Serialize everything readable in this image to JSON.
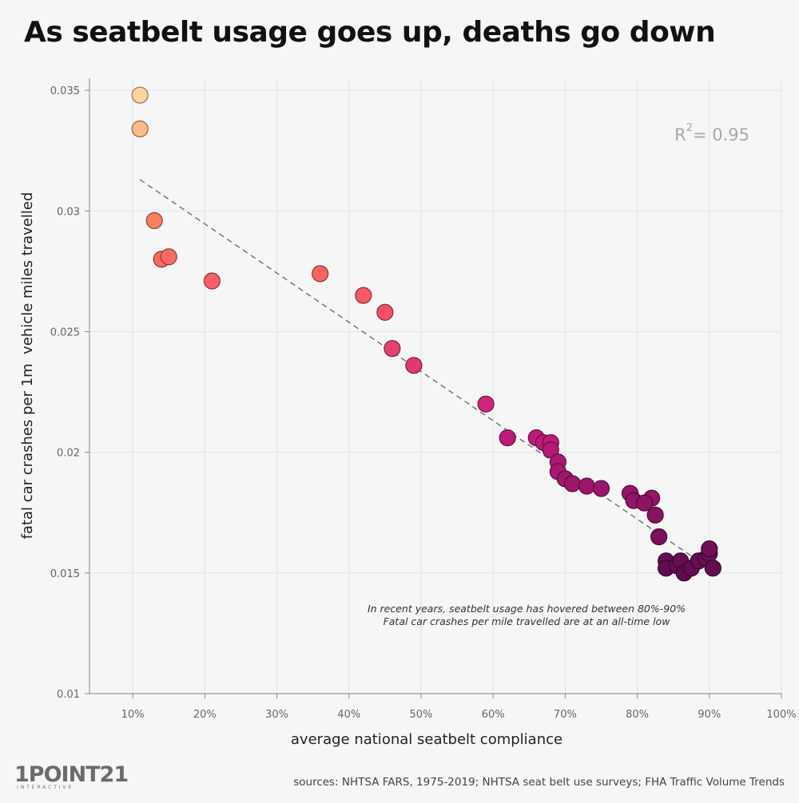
{
  "chart_data": {
    "type": "scatter",
    "title": "As seatbelt usage goes up, deaths go down",
    "xlabel": "average national seatbelt compliance",
    "ylabel": "fatal car crashes per 1m  vehicle miles travelled",
    "xlim": [
      4,
      100
    ],
    "ylim": [
      0.01,
      0.0355
    ],
    "x_ticks": [
      10,
      20,
      30,
      40,
      50,
      60,
      70,
      80,
      90,
      100
    ],
    "x_tick_labels": [
      "10%",
      "20%",
      "30%",
      "40%",
      "50%",
      "60%",
      "70%",
      "80%",
      "90%",
      "100%"
    ],
    "y_ticks": [
      0.01,
      0.015,
      0.02,
      0.025,
      0.03,
      0.035
    ],
    "y_tick_labels": [
      "0.01",
      "0.015",
      "0.02",
      "0.025",
      "0.03",
      "0.035"
    ],
    "grid": true,
    "r_squared": {
      "prefix": "R",
      "superscript": "2",
      "suffix": "= 0.95"
    },
    "trendline": {
      "x": [
        11,
        88.5
      ],
      "y": [
        0.0313,
        0.0155
      ],
      "style": "dashed"
    },
    "annotation": {
      "line1": "In recent years, seatbelt usage has hovered between 80%-90%",
      "line2": "Fatal car crashes per mile travelled are at an all-time low"
    },
    "color_scale": {
      "low": "#fdd49e",
      "mid1": "#fc8d59",
      "mid2": "#f7506a",
      "mid3": "#c51b7d",
      "high": "#5e0c4e"
    },
    "points": [
      {
        "x": 11,
        "y": 0.0348
      },
      {
        "x": 11,
        "y": 0.0334
      },
      {
        "x": 13,
        "y": 0.0296
      },
      {
        "x": 14,
        "y": 0.028
      },
      {
        "x": 15,
        "y": 0.0281
      },
      {
        "x": 21,
        "y": 0.0271
      },
      {
        "x": 36,
        "y": 0.0274
      },
      {
        "x": 42,
        "y": 0.0265
      },
      {
        "x": 45,
        "y": 0.0258
      },
      {
        "x": 46,
        "y": 0.0243
      },
      {
        "x": 49,
        "y": 0.0236
      },
      {
        "x": 59,
        "y": 0.022
      },
      {
        "x": 62,
        "y": 0.0206
      },
      {
        "x": 66,
        "y": 0.0206
      },
      {
        "x": 67,
        "y": 0.0204
      },
      {
        "x": 68,
        "y": 0.0204
      },
      {
        "x": 68,
        "y": 0.0201
      },
      {
        "x": 69,
        "y": 0.0196
      },
      {
        "x": 69,
        "y": 0.0192
      },
      {
        "x": 70,
        "y": 0.0189
      },
      {
        "x": 71,
        "y": 0.0187
      },
      {
        "x": 73,
        "y": 0.0186
      },
      {
        "x": 75,
        "y": 0.0185
      },
      {
        "x": 79,
        "y": 0.0183
      },
      {
        "x": 79.5,
        "y": 0.018
      },
      {
        "x": 82,
        "y": 0.0181
      },
      {
        "x": 81,
        "y": 0.0179
      },
      {
        "x": 82.5,
        "y": 0.0174
      },
      {
        "x": 83,
        "y": 0.0165
      },
      {
        "x": 84,
        "y": 0.0155
      },
      {
        "x": 84,
        "y": 0.0152
      },
      {
        "x": 85.5,
        "y": 0.0153
      },
      {
        "x": 86,
        "y": 0.0155
      },
      {
        "x": 86.5,
        "y": 0.015
      },
      {
        "x": 87.5,
        "y": 0.0152
      },
      {
        "x": 88.5,
        "y": 0.0155
      },
      {
        "x": 89.5,
        "y": 0.0156
      },
      {
        "x": 90,
        "y": 0.0158
      },
      {
        "x": 90,
        "y": 0.016
      },
      {
        "x": 90.5,
        "y": 0.0152
      }
    ]
  },
  "logo": {
    "main": "1POINT21",
    "sub": "INTERACTIVE"
  },
  "sources": "sources: NHTSA FARS, 1975-2019; NHTSA seat belt use surveys; FHA Traffic Volume Trends"
}
